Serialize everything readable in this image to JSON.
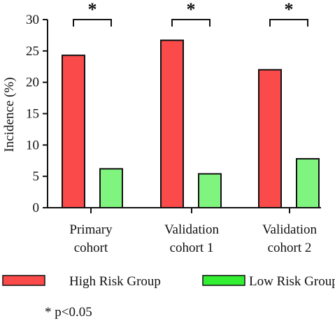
{
  "chart_data": {
    "type": "bar",
    "categories": [
      [
        "Primary",
        "cohort"
      ],
      [
        "Validation",
        "cohort 1"
      ],
      [
        "Validation",
        "cohort 2"
      ]
    ],
    "series": [
      {
        "name": "High Risk Group",
        "values": [
          24.3,
          26.7,
          22.0
        ],
        "color": "#fa4a4a"
      },
      {
        "name": "Low Risk Group",
        "values": [
          6.2,
          5.4,
          7.8
        ],
        "color": "#7ff57f"
      }
    ],
    "legend_colors": [
      "#fa4a4a",
      "#33ee33"
    ],
    "ylabel": "Incidence (%)",
    "ylim": [
      0,
      30
    ],
    "yticks": [
      0,
      5,
      10,
      15,
      20,
      25,
      30
    ],
    "grid": false,
    "legend_position": "bottom",
    "significance": [
      {
        "category_index": 0,
        "marker": "*"
      },
      {
        "category_index": 1,
        "marker": "*"
      },
      {
        "category_index": 2,
        "marker": "*"
      }
    ],
    "footnote": "* p<0.05"
  }
}
